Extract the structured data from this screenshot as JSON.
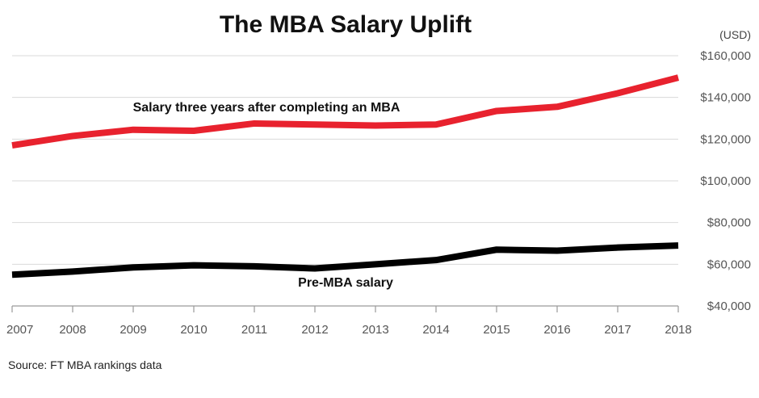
{
  "chart_data": {
    "type": "line",
    "title": "The MBA Salary Uplift",
    "unit_label": "(USD)",
    "x": [
      "2007",
      "2008",
      "2009",
      "2010",
      "2011",
      "2012",
      "2013",
      "2014",
      "2015",
      "2016",
      "2017",
      "2018"
    ],
    "ylim": [
      40000,
      160000
    ],
    "yticks": [
      40000,
      60000,
      80000,
      100000,
      120000,
      140000,
      160000
    ],
    "ytick_labels": [
      "$40,000",
      "$60,000",
      "$80,000",
      "$100,000",
      "$120,000",
      "$140,000",
      "$160,000"
    ],
    "grid": true,
    "y_axis_side": "right",
    "series": [
      {
        "name": "Salary three years after completing an MBA",
        "color": "#e8222e",
        "values": [
          117000,
          121500,
          124500,
          124000,
          127500,
          127000,
          126500,
          127000,
          133500,
          135500,
          142000,
          149500
        ]
      },
      {
        "name": "Pre-MBA salary",
        "color": "#000000",
        "values": [
          55000,
          56500,
          58500,
          59500,
          59000,
          58000,
          60000,
          62000,
          67000,
          66500,
          68000,
          69000
        ]
      }
    ],
    "source": "Source: FT MBA rankings data"
  }
}
